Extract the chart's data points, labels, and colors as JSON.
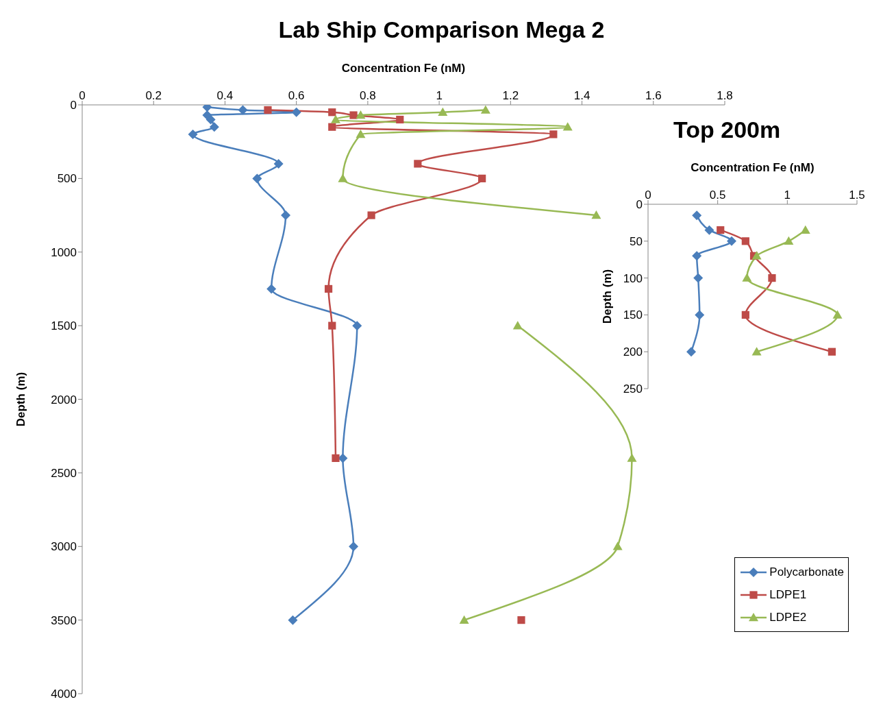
{
  "chart_data": [
    {
      "type": "line",
      "title": "Lab Ship Comparison Mega 2",
      "xlabel": "Concentration Fe (nM)",
      "ylabel": "Depth (m)",
      "xlim": [
        0,
        1.8
      ],
      "xticks": [
        0,
        0.2,
        0.4,
        0.6,
        0.8,
        1,
        1.2,
        1.4,
        1.6,
        1.8
      ],
      "ylim": [
        4000,
        0
      ],
      "yticks": [
        0,
        500,
        1000,
        1500,
        2000,
        2500,
        3000,
        3500,
        4000
      ],
      "grid": false,
      "legend": "bottom right",
      "series": [
        {
          "name": "Polycarbonate",
          "color": "#4a7ebb",
          "marker": "diamond",
          "x": [
            0.35,
            0.45,
            0.6,
            0.35,
            0.36,
            0.37,
            0.31,
            0.55,
            0.49,
            0.57,
            0.53,
            0.77,
            0.73,
            0.76,
            0.59
          ],
          "values": [
            15,
            35,
            50,
            70,
            100,
            150,
            200,
            400,
            500,
            750,
            1250,
            1500,
            2400,
            3000,
            3500
          ]
        },
        {
          "name": "LDPE1",
          "color": "#be4b48",
          "marker": "square",
          "x": [
            0.52,
            0.7,
            0.76,
            0.89,
            0.7,
            1.32,
            0.94,
            1.12,
            0.81,
            0.69,
            0.7,
            0.71,
            null,
            1.23
          ],
          "values": [
            35,
            50,
            70,
            100,
            150,
            200,
            400,
            500,
            750,
            1250,
            1500,
            2400,
            null,
            3500
          ]
        },
        {
          "name": "LDPE2",
          "color": "#98b954",
          "marker": "triangle",
          "x": [
            1.13,
            1.01,
            0.78,
            0.71,
            1.36,
            0.78,
            0.73,
            1.44,
            null,
            1.22,
            1.54,
            1.5,
            1.07
          ],
          "values": [
            35,
            50,
            70,
            100,
            150,
            200,
            500,
            750,
            null,
            1500,
            2400,
            3000,
            3500
          ]
        }
      ]
    },
    {
      "type": "line",
      "title": "Top 200m",
      "xlabel": "Concentration Fe (nM)",
      "ylabel": "Depth (m)",
      "xlim": [
        0,
        1.5
      ],
      "xticks": [
        0,
        0.5,
        1,
        1.5
      ],
      "ylim": [
        250,
        0
      ],
      "yticks": [
        0,
        50,
        100,
        150,
        200,
        250
      ],
      "grid": false,
      "series": [
        {
          "color": "#4a7ebb",
          "marker": "diamond",
          "x": [
            0.35,
            0.44,
            0.6,
            0.35,
            0.36,
            0.37,
            0.31
          ],
          "values": [
            15,
            35,
            50,
            70,
            100,
            150,
            200
          ]
        },
        {
          "color": "#be4b48",
          "marker": "square",
          "x": [
            0.52,
            0.7,
            0.76,
            0.89,
            0.7,
            1.32
          ],
          "values": [
            35,
            50,
            70,
            100,
            150,
            200
          ]
        },
        {
          "color": "#98b954",
          "marker": "triangle",
          "x": [
            1.13,
            1.01,
            0.78,
            0.71,
            1.36,
            0.78
          ],
          "values": [
            35,
            50,
            70,
            100,
            150,
            200
          ]
        }
      ]
    }
  ]
}
